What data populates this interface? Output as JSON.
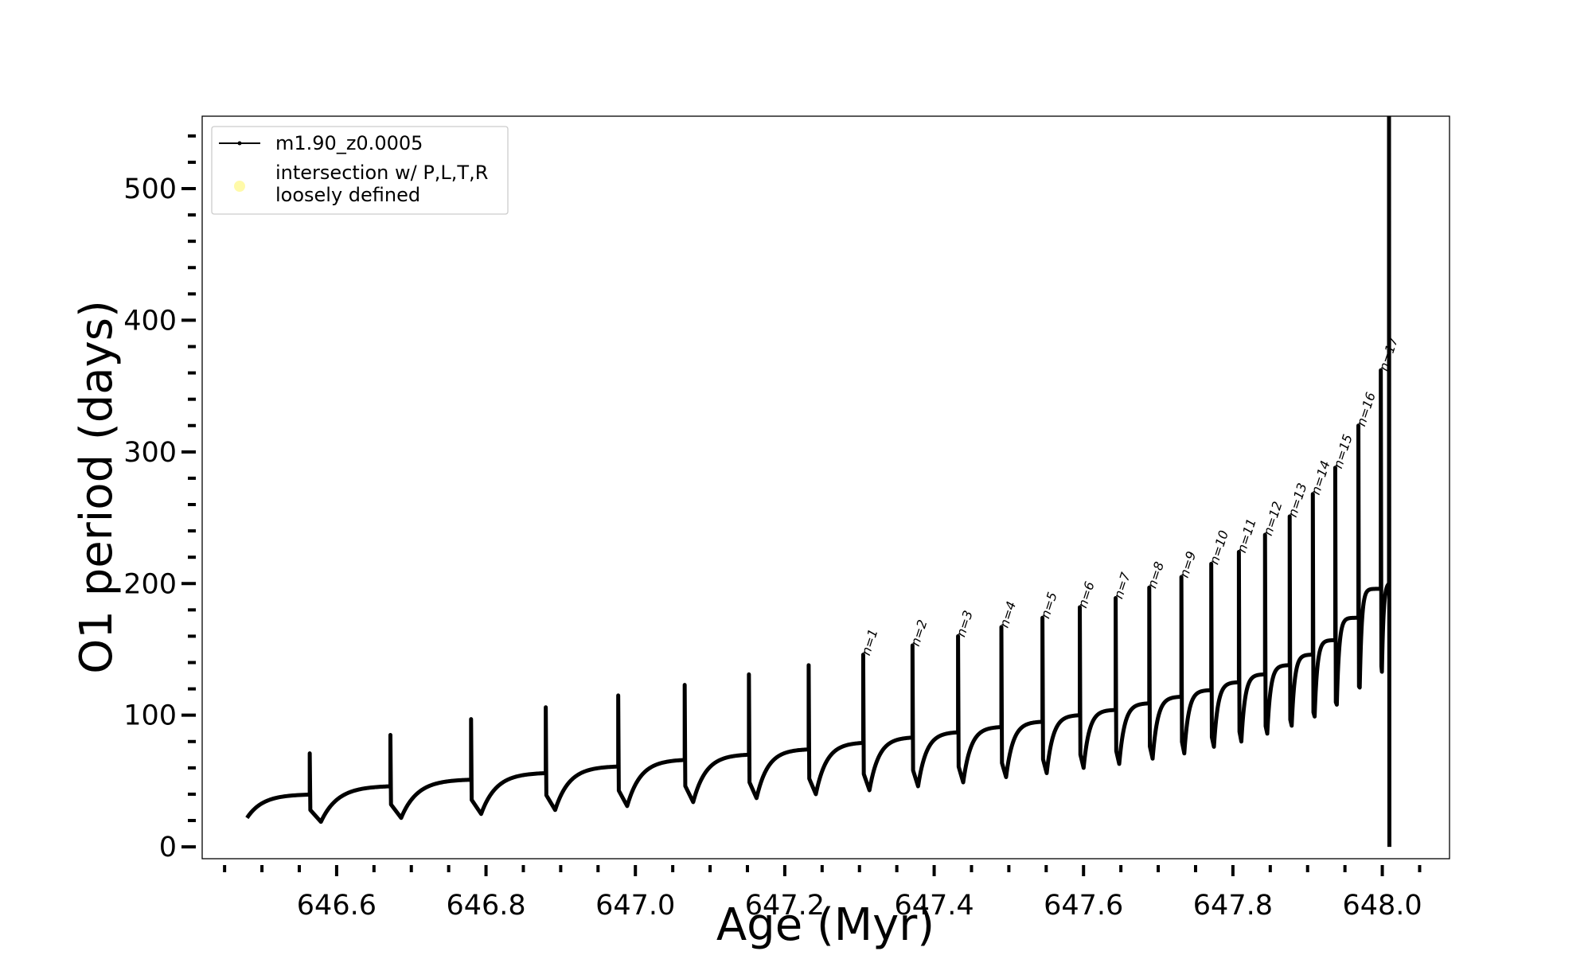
{
  "chart_data": {
    "type": "line",
    "xlabel": "Age (Myr)",
    "ylabel": "O1 period (days)",
    "xlim": [
      646.42,
      648.09
    ],
    "ylim": [
      -9,
      555
    ],
    "x_ticks": [
      646.6,
      646.8,
      647.0,
      647.2,
      647.4,
      647.6,
      647.8,
      648.0
    ],
    "x_tick_labels": [
      "646.6",
      "646.8",
      "647.0",
      "647.2",
      "647.4",
      "647.6",
      "647.8",
      "648.0"
    ],
    "x_minor_step": 0.05,
    "y_ticks": [
      0,
      100,
      200,
      300,
      400,
      500
    ],
    "y_tick_labels": [
      "0",
      "100",
      "200",
      "300",
      "400",
      "500"
    ],
    "y_minor_step": 20,
    "grid": false,
    "legend": {
      "position": "upper-left",
      "entries": [
        {
          "label": "m1.90_z0.0005",
          "marker": "line",
          "color": "#000000"
        },
        {
          "label_lines": [
            "intersection w/ P,L,T,R",
            "loosely defined"
          ],
          "marker": "dot",
          "color": "#fffaa0"
        }
      ]
    },
    "series": [
      {
        "name": "m1.90_z0.0005",
        "color": "#000000",
        "start": {
          "x": 646.48,
          "y": 22
        },
        "pulses": [
          {
            "x": 646.564,
            "peak": 71,
            "base": 40,
            "dip": 19,
            "rec": 0.05
          },
          {
            "x": 646.672,
            "peak": 85,
            "base": 46,
            "dip": 22,
            "rec": 0.048
          },
          {
            "x": 646.78,
            "peak": 97,
            "base": 51,
            "dip": 25,
            "rec": 0.045
          },
          {
            "x": 646.88,
            "peak": 106,
            "base": 56,
            "dip": 28,
            "rec": 0.042
          },
          {
            "x": 646.977,
            "peak": 115,
            "base": 61,
            "dip": 31,
            "rec": 0.04
          },
          {
            "x": 647.066,
            "peak": 123,
            "base": 66,
            "dip": 34,
            "rec": 0.038
          },
          {
            "x": 647.152,
            "peak": 131,
            "base": 70,
            "dip": 37,
            "rec": 0.034
          },
          {
            "x": 647.232,
            "peak": 138,
            "base": 74,
            "dip": 40,
            "rec": 0.032
          },
          {
            "x": 647.305,
            "peak": 146,
            "base": 79,
            "dip": 43,
            "rec": 0.028,
            "label": "n=1"
          },
          {
            "x": 647.371,
            "peak": 153,
            "base": 83,
            "dip": 46,
            "rec": 0.025,
            "label": "n=2"
          },
          {
            "x": 647.432,
            "peak": 160,
            "base": 87,
            "dip": 49,
            "rec": 0.023,
            "label": "n=3"
          },
          {
            "x": 647.49,
            "peak": 167,
            "base": 91,
            "dip": 53,
            "rec": 0.021,
            "label": "n=4"
          },
          {
            "x": 647.545,
            "peak": 174,
            "base": 95,
            "dip": 56,
            "rec": 0.019,
            "label": "n=5"
          },
          {
            "x": 647.595,
            "peak": 182,
            "base": 100,
            "dip": 60,
            "rec": 0.017,
            "label": "n=6"
          },
          {
            "x": 647.643,
            "peak": 189,
            "base": 104,
            "dip": 63,
            "rec": 0.016,
            "label": "n=7"
          },
          {
            "x": 647.688,
            "peak": 197,
            "base": 109,
            "dip": 67,
            "rec": 0.015,
            "label": "n=8"
          },
          {
            "x": 647.731,
            "peak": 205,
            "base": 114,
            "dip": 71,
            "rec": 0.013,
            "label": "n=9"
          },
          {
            "x": 647.771,
            "peak": 215,
            "base": 119,
            "dip": 76,
            "rec": 0.012,
            "label": "n=10"
          },
          {
            "x": 647.808,
            "peak": 224,
            "base": 125,
            "dip": 80,
            "rec": 0.011,
            "label": "n=11"
          },
          {
            "x": 647.843,
            "peak": 237,
            "base": 131,
            "dip": 86,
            "rec": 0.01,
            "label": "n=12"
          },
          {
            "x": 647.876,
            "peak": 251,
            "base": 138,
            "dip": 92,
            "rec": 0.009,
            "label": "n=13"
          },
          {
            "x": 647.907,
            "peak": 268,
            "base": 146,
            "dip": 99,
            "rec": 0.008,
            "label": "n=14"
          },
          {
            "x": 647.937,
            "peak": 288,
            "base": 157,
            "dip": 108,
            "rec": 0.007,
            "label": "n=15"
          },
          {
            "x": 647.968,
            "peak": 320,
            "base": 174,
            "dip": 121,
            "rec": 0.006,
            "label": "n=16"
          },
          {
            "x": 647.998,
            "peak": 362,
            "base": 196,
            "dip": 133,
            "rec": 0.005,
            "label": "n=17"
          }
        ],
        "end": {
          "x": 648.009,
          "peak": 555,
          "final": 0
        }
      }
    ]
  }
}
